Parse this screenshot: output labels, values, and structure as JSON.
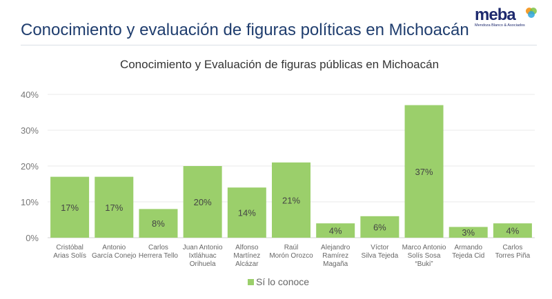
{
  "header": {
    "title": "Conocimiento y evaluación de figuras políticas en Michoacán",
    "logo_text": "meba",
    "logo_subtitle": "Mendoza Blanco & Asociados"
  },
  "chart_data": {
    "type": "bar",
    "title": "Conocimiento y Evaluación de figuras públicas en Michoacán",
    "categories": [
      [
        "Cristóbal",
        "Arias Solís"
      ],
      [
        "Antonio",
        "García Conejo"
      ],
      [
        "Carlos",
        "Herrera Tello"
      ],
      [
        "Juan Antonio",
        "Ixtláhuac",
        "Orihuela"
      ],
      [
        "Alfonso",
        "Martínez",
        "Alcázar"
      ],
      [
        "Raúl",
        "Morón Orozco"
      ],
      [
        "Alejandro",
        "Ramírez",
        "Magaña"
      ],
      [
        "Víctor",
        "Silva Tejeda"
      ],
      [
        "Marco Antonio",
        "Solís Sosa",
        "“Buki”"
      ],
      [
        "Armando",
        "Tejeda Cid"
      ],
      [
        "Carlos",
        "Torres Piña"
      ]
    ],
    "series": [
      {
        "name": "Sí lo conoce",
        "values": [
          17,
          17,
          8,
          20,
          14,
          21,
          4,
          6,
          37,
          3,
          4
        ],
        "color": "#9bcf6b"
      }
    ],
    "data_labels": [
      "17%",
      "17%",
      "8%",
      "20%",
      "14%",
      "21%",
      "4%",
      "6%",
      "37%",
      "3%",
      "4%"
    ],
    "yticks": [
      "0%",
      "10%",
      "20%",
      "30%",
      "40%"
    ],
    "ylim": [
      0,
      40
    ],
    "grid": true,
    "legend": "bottom"
  }
}
